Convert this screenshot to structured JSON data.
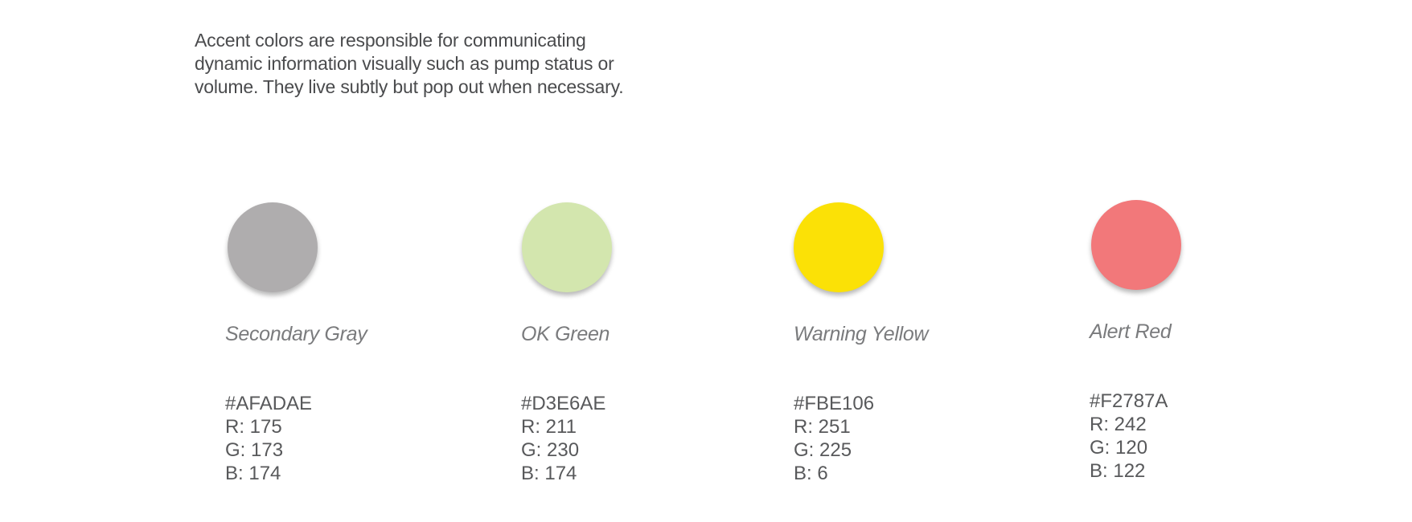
{
  "intro": {
    "lines": [
      "Accent colors are responsible for communicating",
      "dynamic information visually such as pump status or",
      "volume. They live subtly but pop out when necessary."
    ]
  },
  "swatches": [
    {
      "name": "Secondary Gray",
      "color": "#AFADAE",
      "hex": "#AFADAE",
      "r": "R: 175",
      "g": "G: 173",
      "b": "B: 174"
    },
    {
      "name": "OK Green",
      "color": "#D3E6AE",
      "hex": "#D3E6AE",
      "r": "R: 211",
      "g": "G: 230",
      "b": "B: 174"
    },
    {
      "name": "Warning Yellow",
      "color": "#FBE106",
      "hex": "#FBE106",
      "r": "R: 251",
      "g": "G: 225",
      "b": "B: 6"
    },
    {
      "name": "Alert Red",
      "color": "#F2787A",
      "hex": "#F2787A",
      "r": "R: 242",
      "g": "G: 120",
      "b": "B: 122"
    }
  ]
}
